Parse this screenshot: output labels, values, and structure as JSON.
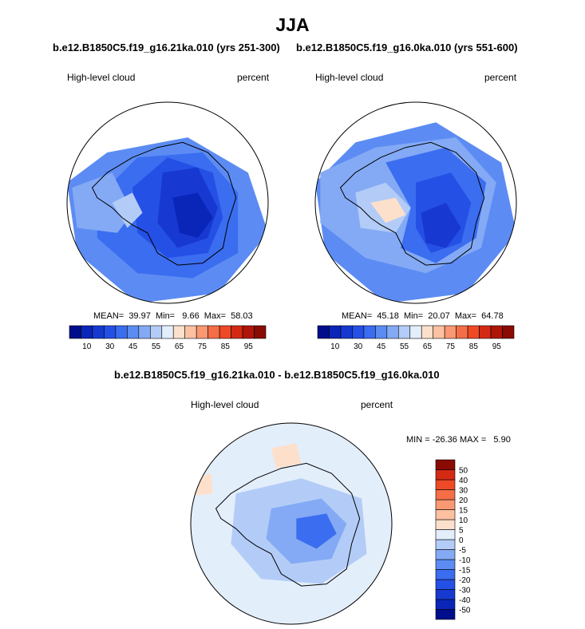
{
  "page": {
    "title": "JJA",
    "difference_title": "b.e12.B1850C5.f19_g16.21ka.010 - b.e12.B1850C5.f19_g16.0ka.010"
  },
  "chart_data": [
    {
      "type": "heatmap",
      "projection": "south-polar-stereographic",
      "title": "b.e12.B1850C5.f19_g16.21ka.010 (yrs 251-300)",
      "left_label": "High-level cloud",
      "right_label": "percent",
      "stats_text": "MEAN=  39.97  Min=   9.66  Max=  58.03",
      "stats": {
        "mean": 39.97,
        "min": 9.66,
        "max": 58.03
      },
      "colorbar": {
        "orientation": "horizontal",
        "levels": [
          5,
          10,
          20,
          30,
          40,
          45,
          50,
          55,
          60,
          65,
          70,
          75,
          80,
          85,
          90,
          95
        ],
        "tick_labels": [
          "10",
          "30",
          "45",
          "55",
          "65",
          "75",
          "85",
          "95"
        ],
        "colors": [
          "#000e8c",
          "#0a26b8",
          "#1739d1",
          "#2550e6",
          "#3b6df0",
          "#5c8cf3",
          "#84aaf5",
          "#b3ccf7",
          "#e3eefb",
          "#fde0cc",
          "#fcc1a1",
          "#f99872",
          "#f56e47",
          "#ee4a26",
          "#d42a14",
          "#b01509",
          "#8a0a04"
        ]
      }
    },
    {
      "type": "heatmap",
      "projection": "south-polar-stereographic",
      "title": "b.e12.B1850C5.f19_g16.0ka.010 (yrs 551-600)",
      "left_label": "High-level cloud",
      "right_label": "percent",
      "stats_text": "MEAN=  45.18  Min=  20.07  Max=  64.78",
      "stats": {
        "mean": 45.18,
        "min": 20.07,
        "max": 64.78
      },
      "colorbar": {
        "orientation": "horizontal",
        "levels": [
          5,
          10,
          20,
          30,
          40,
          45,
          50,
          55,
          60,
          65,
          70,
          75,
          80,
          85,
          90,
          95
        ],
        "tick_labels": [
          "10",
          "30",
          "45",
          "55",
          "65",
          "75",
          "85",
          "95"
        ],
        "colors": [
          "#000e8c",
          "#0a26b8",
          "#1739d1",
          "#2550e6",
          "#3b6df0",
          "#5c8cf3",
          "#84aaf5",
          "#b3ccf7",
          "#e3eefb",
          "#fde0cc",
          "#fcc1a1",
          "#f99872",
          "#f56e47",
          "#ee4a26",
          "#d42a14",
          "#b01509",
          "#8a0a04"
        ]
      }
    },
    {
      "type": "heatmap",
      "projection": "south-polar-stereographic",
      "title": "b.e12.B1850C5.f19_g16.21ka.010 - b.e12.B1850C5.f19_g16.0ka.010",
      "left_label": "High-level cloud",
      "right_label": "percent",
      "stats_text": "MIN = -26.36 MAX =   5.90",
      "stats": {
        "min": -26.36,
        "max": 5.9
      },
      "colorbar": {
        "orientation": "vertical",
        "levels": [
          -50,
          -40,
          -30,
          -20,
          -15,
          -10,
          -5,
          0,
          5,
          10,
          15,
          20,
          30,
          40,
          50
        ],
        "tick_labels": [
          "-50",
          "-40",
          "-30",
          "-20",
          "-15",
          "-10",
          "-5",
          "0",
          "5",
          "10",
          "15",
          "20",
          "30",
          "40",
          "50"
        ],
        "colors": [
          "#000e8c",
          "#0a26b8",
          "#1739d1",
          "#2550e6",
          "#3b6df0",
          "#5c8cf3",
          "#84aaf5",
          "#b3ccf7",
          "#e3eefb",
          "#fde0cc",
          "#fcc1a1",
          "#f99872",
          "#f56e47",
          "#ee4a26",
          "#d42a14",
          "#8a0a04"
        ]
      }
    }
  ]
}
